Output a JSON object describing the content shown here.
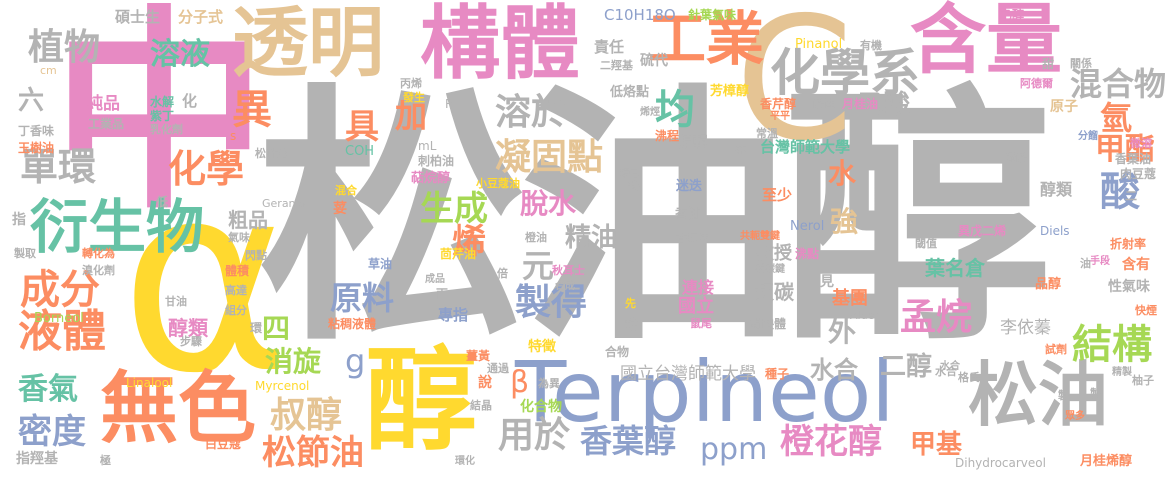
{
  "words": [
    {
      "id": "w01",
      "text": "松油醇",
      "color": "#b3b3b3"
    },
    {
      "id": "w02",
      "text": "中",
      "color": "#e78ac3"
    },
    {
      "id": "w03",
      "text": "α",
      "color": "#ffd92f"
    },
    {
      "id": "w04",
      "text": "C",
      "color": "#e5c494"
    },
    {
      "id": "w05",
      "text": "Terpineol",
      "color": "#8da0cb"
    },
    {
      "id": "w06",
      "text": "醇",
      "color": "#ffd92f"
    },
    {
      "id": "w07",
      "text": "無色",
      "color": "#fc8d62"
    },
    {
      "id": "w08",
      "text": "透明",
      "color": "#e5c494"
    },
    {
      "id": "w09",
      "text": "構體",
      "color": "#e78ac3"
    },
    {
      "id": "w10",
      "text": "含量",
      "color": "#e78ac3"
    },
    {
      "id": "w11",
      "text": "松油",
      "color": "#b3b3b3"
    },
    {
      "id": "w12",
      "text": "衍生物",
      "color": "#66c2a5"
    },
    {
      "id": "w13",
      "text": "工業",
      "color": "#fc8d62"
    },
    {
      "id": "w14",
      "text": "化學系",
      "color": "#b3b3b3"
    },
    {
      "id": "w15",
      "text": "液體",
      "color": "#fc8d62"
    },
    {
      "id": "w16",
      "text": "結構",
      "color": "#a6d854"
    },
    {
      "id": "w17",
      "text": "成分",
      "color": "#fc8d62"
    },
    {
      "id": "w18",
      "text": "單環",
      "color": "#b3b3b3"
    },
    {
      "id": "w19",
      "text": "化學",
      "color": "#fc8d62"
    },
    {
      "id": "w20",
      "text": "植物",
      "color": "#b3b3b3"
    },
    {
      "id": "w21",
      "text": "溶液",
      "color": "#66c2a5"
    },
    {
      "id": "w22",
      "text": "溶於",
      "color": "#b3b3b3"
    },
    {
      "id": "w23",
      "text": "凝固點",
      "color": "#e5c494"
    },
    {
      "id": "w24",
      "text": "混合物",
      "color": "#b3b3b3"
    },
    {
      "id": "w25",
      "text": "氫",
      "color": "#fc8d62"
    },
    {
      "id": "w26",
      "text": "甲酯",
      "color": "#fc8d62"
    },
    {
      "id": "w27",
      "text": "酸",
      "color": "#8da0cb"
    },
    {
      "id": "w28",
      "text": "乙酸",
      "color": "#b3b3b3"
    },
    {
      "id": "w29",
      "text": "均",
      "color": "#66c2a5"
    },
    {
      "id": "w30",
      "text": "異",
      "color": "#fc8d62"
    },
    {
      "id": "w31",
      "text": "具",
      "color": "#fc8d62"
    },
    {
      "id": "w32",
      "text": "加",
      "color": "#fc8d62"
    },
    {
      "id": "w33",
      "text": "生成",
      "color": "#a6d854"
    },
    {
      "id": "w34",
      "text": "脫水",
      "color": "#e78ac3"
    },
    {
      "id": "w35",
      "text": "精油",
      "color": "#b3b3b3"
    },
    {
      "id": "w36",
      "text": "烯",
      "color": "#fc8d62"
    },
    {
      "id": "w37",
      "text": "元",
      "color": "#b3b3b3"
    },
    {
      "id": "w38",
      "text": "製得",
      "color": "#8da0cb"
    },
    {
      "id": "w39",
      "text": "原料",
      "color": "#8da0cb"
    },
    {
      "id": "w40",
      "text": "孟烷",
      "color": "#e78ac3"
    },
    {
      "id": "w41",
      "text": "叔醇",
      "color": "#e5c494"
    },
    {
      "id": "w42",
      "text": "香葉醇",
      "color": "#8da0cb"
    },
    {
      "id": "w43",
      "text": "橙花醇",
      "color": "#e78ac3"
    },
    {
      "id": "w44",
      "text": "甲基",
      "color": "#fc8d62"
    },
    {
      "id": "w45",
      "text": "松節油",
      "color": "#fc8d62"
    },
    {
      "id": "w46",
      "text": "用於",
      "color": "#b3b3b3"
    },
    {
      "id": "w47",
      "text": "密度",
      "color": "#8da0cb"
    },
    {
      "id": "w48",
      "text": "香氣",
      "color": "#66c2a5"
    },
    {
      "id": "w49",
      "text": "消旋",
      "color": "#a6d854"
    },
    {
      "id": "w50",
      "text": "四",
      "color": "#a6d854"
    },
    {
      "id": "w51",
      "text": "六",
      "color": "#b3b3b3"
    },
    {
      "id": "w52",
      "text": "ppm",
      "color": "#8da0cb"
    },
    {
      "id": "w53",
      "text": "水",
      "color": "#fc8d62"
    },
    {
      "id": "w54",
      "text": "強",
      "color": "#e5c494"
    },
    {
      "id": "w55",
      "text": "外",
      "color": "#b3b3b3"
    },
    {
      "id": "w56",
      "text": "水合",
      "color": "#b3b3b3"
    },
    {
      "id": "w57",
      "text": "二醇",
      "color": "#b3b3b3"
    },
    {
      "id": "w58",
      "text": "β",
      "color": "#fc8d62"
    },
    {
      "id": "w59",
      "text": "g",
      "color": "#8da0cb"
    },
    {
      "id": "w60",
      "text": "粗品",
      "color": "#b3b3b3"
    },
    {
      "id": "w61",
      "text": "醇類",
      "color": "#e78ac3"
    },
    {
      "id": "w62",
      "text": "葉名倉",
      "color": "#66c2a5"
    },
    {
      "id": "w63",
      "text": "醇類",
      "color": "#b3b3b3"
    },
    {
      "id": "w64",
      "text": "台灣師範大學",
      "color": "#66c2a5"
    },
    {
      "id": "w65",
      "text": "國立台灣師範大學",
      "color": "#b3b3b3"
    },
    {
      "id": "w66",
      "text": "連接",
      "color": "#e78ac3"
    },
    {
      "id": "w67",
      "text": "國立",
      "color": "#e78ac3"
    },
    {
      "id": "w68",
      "text": "教授",
      "color": "#b3b3b3"
    },
    {
      "id": "w69",
      "text": "叔碳",
      "color": "#b3b3b3"
    },
    {
      "id": "w70",
      "text": "李依蓁",
      "color": "#b3b3b3"
    },
    {
      "id": "w71",
      "text": "基團",
      "color": "#fc8d62"
    },
    {
      "id": "w72",
      "text": "碩士生",
      "color": "#b3b3b3"
    },
    {
      "id": "w73",
      "text": "分子式",
      "color": "#e5c494"
    },
    {
      "id": "w74",
      "text": "C10H18O",
      "color": "#8da0cb"
    },
    {
      "id": "w75",
      "text": "針葉氣味",
      "color": "#a6d854"
    },
    {
      "id": "w76",
      "text": "乙醇",
      "color": "#e78ac3"
    },
    {
      "id": "w77",
      "text": "Pinanol",
      "color": "#ffd92f"
    },
    {
      "id": "w78",
      "text": "有機",
      "color": "#b3b3b3"
    },
    {
      "id": "w79",
      "text": "責任",
      "color": "#b3b3b3"
    },
    {
      "id": "w80",
      "text": "硫代",
      "color": "#b3b3b3"
    },
    {
      "id": "w81",
      "text": "二羥基",
      "color": "#b3b3b3"
    },
    {
      "id": "w82",
      "text": "香芹醇",
      "color": "#fc8d62"
    },
    {
      "id": "w83",
      "text": "酸性",
      "color": "#b3b3b3"
    },
    {
      "id": "w84",
      "text": "月桂油",
      "color": "#e78ac3"
    },
    {
      "id": "w85",
      "text": "原子",
      "color": "#e5c494"
    },
    {
      "id": "w86",
      "text": "阿德爾",
      "color": "#e78ac3"
    },
    {
      "id": "w87",
      "text": "編輯",
      "color": "#b3b3b3"
    },
    {
      "id": "w88",
      "text": "常溫",
      "color": "#b3b3b3"
    },
    {
      "id": "w89",
      "text": "芳樟醇",
      "color": "#ffd92f"
    },
    {
      "id": "w90",
      "text": "沸程",
      "color": "#fc8d62"
    },
    {
      "id": "w91",
      "text": "低烙點",
      "color": "#b3b3b3"
    },
    {
      "id": "w92",
      "text": "純品",
      "color": "#e78ac3"
    },
    {
      "id": "w93",
      "text": "工業品",
      "color": "#b3b3b3"
    },
    {
      "id": "w94",
      "text": "水解",
      "color": "#66c2a5"
    },
    {
      "id": "w95",
      "text": "紫丁",
      "color": "#66c2a5"
    },
    {
      "id": "w96",
      "text": "乳化劑",
      "color": "#b3b3b3"
    },
    {
      "id": "w97",
      "text": "化",
      "color": "#b3b3b3"
    },
    {
      "id": "w98",
      "text": "丁香味",
      "color": "#b3b3b3"
    },
    {
      "id": "w99",
      "text": "玉樹油",
      "color": "#fc8d62"
    },
    {
      "id": "w100",
      "text": "松針油",
      "color": "#b3b3b3"
    },
    {
      "id": "w101",
      "text": "COH",
      "color": "#66c2a5"
    },
    {
      "id": "w102",
      "text": "刺柏油",
      "color": "#b3b3b3"
    },
    {
      "id": "w103",
      "text": "萜烷醇",
      "color": "#e78ac3"
    },
    {
      "id": "w104",
      "text": "小豆蔻油",
      "color": "#ffd92f"
    },
    {
      "id": "w105",
      "text": "Geraniol",
      "color": "#b3b3b3"
    },
    {
      "id": "w106",
      "text": "荽",
      "color": "#fc8d62"
    },
    {
      "id": "w107",
      "text": "茴芹油",
      "color": "#ffd92f"
    },
    {
      "id": "w108",
      "text": "秋耳士",
      "color": "#e78ac3"
    },
    {
      "id": "w109",
      "text": "草油",
      "color": "#8da0cb"
    },
    {
      "id": "w110",
      "text": "橙油",
      "color": "#b3b3b3"
    },
    {
      "id": "w111",
      "text": "迷迭",
      "color": "#8da0cb"
    },
    {
      "id": "w112",
      "text": "香油",
      "color": "#b3b3b3"
    },
    {
      "id": "w113",
      "text": "香氣味",
      "color": "#b3b3b3"
    },
    {
      "id": "w114",
      "text": "至少",
      "color": "#fc8d62"
    },
    {
      "id": "w115",
      "text": "Nerol",
      "color": "#8da0cb"
    },
    {
      "id": "w116",
      "text": "閾值",
      "color": "#b3b3b3"
    },
    {
      "id": "w117",
      "text": "沸點",
      "color": "#e78ac3"
    },
    {
      "id": "w118",
      "text": "異戊二烯",
      "color": "#e78ac3"
    },
    {
      "id": "w119",
      "text": "Diels",
      "color": "#8da0cb"
    },
    {
      "id": "w120",
      "text": "Alder",
      "color": "#b3b3b3"
    },
    {
      "id": "w121",
      "text": "硫酸",
      "color": "#b3b3b3"
    },
    {
      "id": "w122",
      "text": "香葉油",
      "color": "#b3b3b3"
    },
    {
      "id": "w123",
      "text": "肉豆蔻",
      "color": "#b3b3b3"
    },
    {
      "id": "w124",
      "text": "微溶",
      "color": "#e78ac3"
    },
    {
      "id": "w125",
      "text": "分餾",
      "color": "#8da0cb"
    },
    {
      "id": "w126",
      "text": "關係",
      "color": "#b3b3b3"
    },
    {
      "id": "w127",
      "text": "甜",
      "color": "#b3b3b3"
    },
    {
      "id": "w128",
      "text": "折射率",
      "color": "#fc8d62"
    },
    {
      "id": "w129",
      "text": "含有",
      "color": "#fc8d62"
    },
    {
      "id": "w130",
      "text": "性氣味",
      "color": "#b3b3b3"
    },
    {
      "id": "w131",
      "text": "品醇",
      "color": "#fc8d62"
    },
    {
      "id": "w132",
      "text": "試劑",
      "color": "#fc8d62"
    },
    {
      "id": "w133",
      "text": "快煙",
      "color": "#fc8d62"
    },
    {
      "id": "w134",
      "text": "柚子",
      "color": "#b3b3b3"
    },
    {
      "id": "w135",
      "text": "月桂烯醇",
      "color": "#fc8d62"
    },
    {
      "id": "w136",
      "text": "Dihydrocarveol",
      "color": "#b3b3b3"
    },
    {
      "id": "w137",
      "text": "碳碳鍵",
      "color": "#b3b3b3"
    },
    {
      "id": "w138",
      "text": "鼠尾",
      "color": "#e78ac3"
    },
    {
      "id": "w139",
      "text": "對映體",
      "color": "#b3b3b3"
    },
    {
      "id": "w140",
      "text": "共軛雙鍵",
      "color": "#fc8d62"
    },
    {
      "id": "w141",
      "text": "見",
      "color": "#b3b3b3"
    },
    {
      "id": "w142",
      "text": "特徵",
      "color": "#ffd92f"
    },
    {
      "id": "w143",
      "text": "合物",
      "color": "#b3b3b3"
    },
    {
      "id": "w144",
      "text": "種子",
      "color": "#fc8d62"
    },
    {
      "id": "w145",
      "text": "水合",
      "color": "#b3b3b3"
    },
    {
      "id": "w146",
      "text": "格氏",
      "color": "#b3b3b3"
    },
    {
      "id": "w147",
      "text": "精製",
      "color": "#b3b3b3"
    },
    {
      "id": "w148",
      "text": "粘稠液體",
      "color": "#fc8d62"
    },
    {
      "id": "w149",
      "text": "專指",
      "color": "#8da0cb"
    },
    {
      "id": "w150",
      "text": "兩",
      "color": "#b3b3b3"
    },
    {
      "id": "w151",
      "text": "薑黃",
      "color": "#fc8d62"
    },
    {
      "id": "w152",
      "text": "通過",
      "color": "#b3b3b3"
    },
    {
      "id": "w153",
      "text": "為異",
      "color": "#b3b3b3"
    },
    {
      "id": "w154",
      "text": "化合物",
      "color": "#a6d854"
    },
    {
      "id": "w155",
      "text": "結晶",
      "color": "#b3b3b3"
    },
    {
      "id": "w156",
      "text": "說",
      "color": "#fc8d62"
    },
    {
      "id": "w157",
      "text": "環化",
      "color": "#b3b3b3"
    },
    {
      "id": "w158",
      "text": "白豆蔻",
      "color": "#fc8d62"
    },
    {
      "id": "w159",
      "text": "Myrcenol",
      "color": "#ffd92f"
    },
    {
      "id": "w160",
      "text": "Linalool",
      "color": "#ffd92f"
    },
    {
      "id": "w161",
      "text": "Borneol",
      "color": "#a6d854"
    },
    {
      "id": "w162",
      "text": "指羥基",
      "color": "#b3b3b3"
    },
    {
      "id": "w163",
      "text": "極",
      "color": "#b3b3b3"
    },
    {
      "id": "w164",
      "text": "步驟",
      "color": "#b3b3b3"
    },
    {
      "id": "w165",
      "text": "組分",
      "color": "#b3b3b3"
    },
    {
      "id": "w166",
      "text": "高達",
      "color": "#b3b3b3"
    },
    {
      "id": "w167",
      "text": "甘油",
      "color": "#b3b3b3"
    },
    {
      "id": "w168",
      "text": "體積",
      "color": "#fc8d62"
    },
    {
      "id": "w169",
      "text": "閃點",
      "color": "#b3b3b3"
    },
    {
      "id": "w170",
      "text": "氣味",
      "color": "#b3b3b3"
    },
    {
      "id": "w171",
      "text": "轉化為",
      "color": "#fc8d62"
    },
    {
      "id": "w172",
      "text": "溴化劑",
      "color": "#b3b3b3"
    },
    {
      "id": "w173",
      "text": "指",
      "color": "#b3b3b3"
    },
    {
      "id": "w174",
      "text": "製取",
      "color": "#b3b3b3"
    },
    {
      "id": "w175",
      "text": "低",
      "color": "#b3b3b3"
    },
    {
      "id": "w176",
      "text": "燃",
      "color": "#b3b3b3"
    },
    {
      "id": "w177",
      "text": "倍",
      "color": "#b3b3b3"
    },
    {
      "id": "w178",
      "text": "先",
      "color": "#ffd92f"
    },
    {
      "id": "w179",
      "text": "合成",
      "color": "#b3b3b3"
    },
    {
      "id": "w180",
      "text": "成品",
      "color": "#b3b3b3"
    },
    {
      "id": "w181",
      "text": "混合",
      "color": "#ffd92f"
    },
    {
      "id": "w182",
      "text": "發生",
      "color": "#ffd92f"
    },
    {
      "id": "w183",
      "text": "丙烯",
      "color": "#b3b3b3"
    },
    {
      "id": "w184",
      "text": "mL",
      "color": "#b3b3b3"
    },
    {
      "id": "w185",
      "text": "R",
      "color": "#b3b3b3"
    },
    {
      "id": "w186",
      "text": "s",
      "color": "#fc8d62"
    },
    {
      "id": "w187",
      "text": "cm",
      "color": "#e5c494"
    },
    {
      "id": "w188",
      "text": "烯烴",
      "color": "#b3b3b3"
    },
    {
      "id": "w189",
      "text": "平平",
      "color": "#fc8d62"
    },
    {
      "id": "w190",
      "text": "蒎",
      "color": "#b3b3b3"
    },
    {
      "id": "w191",
      "text": "環己",
      "color": "#b3b3b3"
    },
    {
      "id": "w192",
      "text": "手段",
      "color": "#e78ac3"
    },
    {
      "id": "w193",
      "text": "油",
      "color": "#b3b3b3"
    },
    {
      "id": "w194",
      "text": "水合",
      "color": "#b3b3b3"
    },
    {
      "id": "w195",
      "text": "二",
      "color": "#b3b3b3"
    },
    {
      "id": "w196",
      "text": "製",
      "color": "#b3b3b3"
    },
    {
      "id": "w197",
      "text": "眾多",
      "color": "#fc8d62"
    },
    {
      "id": "w198",
      "text": "稱",
      "color": "#b3b3b3"
    },
    {
      "id": "w199",
      "text": "製",
      "color": "#b3b3b3"
    },
    {
      "id": "w200",
      "text": "環",
      "color": "#b3b3b3"
    }
  ]
}
